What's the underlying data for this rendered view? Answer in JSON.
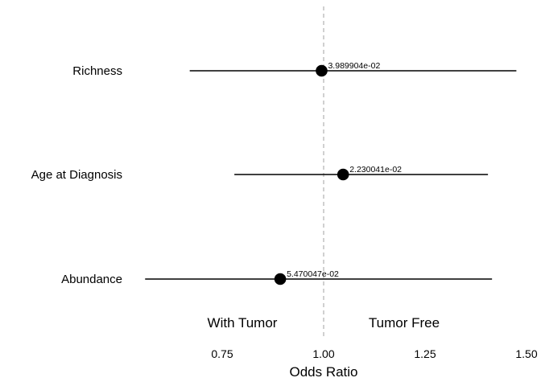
{
  "chart_data": {
    "type": "scatter",
    "subtype": "forest-plot",
    "xlabel": "Odds Ratio",
    "ylabel": "",
    "xlim": [
      0.5,
      1.5
    ],
    "x_ticks": [
      0.75,
      1.0,
      1.25,
      1.5
    ],
    "x_tick_labels": [
      "0.75",
      "1.00",
      "1.25",
      "1.50"
    ],
    "reference_line": {
      "x": 1.0,
      "style": "dashed",
      "color": "#aaaaaa"
    },
    "grid": false,
    "legend": "none",
    "rows": [
      {
        "label": "Richness",
        "estimate": 0.995,
        "ci_low": 0.67,
        "ci_high": 1.475,
        "annotation": "3.989904e-02"
      },
      {
        "label": "Age at Diagnosis",
        "estimate": 1.048,
        "ci_low": 0.78,
        "ci_high": 1.405,
        "annotation": "2.230041e-02"
      },
      {
        "label": "Abundance",
        "estimate": 0.893,
        "ci_low": 0.56,
        "ci_high": 1.415,
        "annotation": "5.470047e-02"
      }
    ],
    "region_labels": {
      "left": "With Tumor",
      "right": "Tumor Free"
    },
    "colors": {
      "point": "#000000",
      "line": "#000000",
      "reference": "#aaaaaa"
    }
  }
}
